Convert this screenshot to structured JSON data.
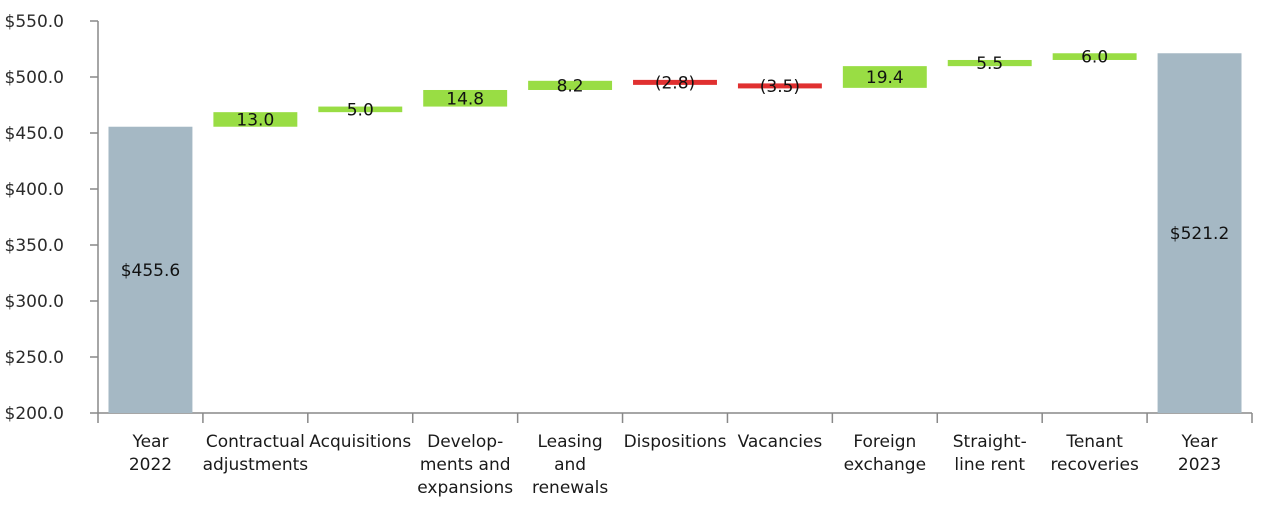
{
  "chart_data": {
    "type": "bar",
    "subtype": "waterfall",
    "title": "",
    "xlabel": "",
    "ylabel": "",
    "ylim": [
      200,
      550
    ],
    "y_ticks": [
      200,
      250,
      300,
      350,
      400,
      450,
      500,
      550
    ],
    "y_tick_labels": [
      "$200.0",
      "$250.0",
      "$300.0",
      "$350.0",
      "$400.0",
      "$450.0",
      "$500.0",
      "$550.0"
    ],
    "grid": false,
    "legend": "none",
    "colors": {
      "total": "#a5b8c4",
      "increase": "#99dd44",
      "decrease": "#e03030",
      "axis": "#888888"
    },
    "categories": [
      [
        "Year",
        "2022"
      ],
      [
        "Contractual",
        "adjustments"
      ],
      [
        "Acquisitions"
      ],
      [
        "Develop-",
        "ments and",
        "expansions"
      ],
      [
        "Leasing",
        "and",
        "renewals"
      ],
      [
        "Dispositions"
      ],
      [
        "Vacancies"
      ],
      [
        "Foreign",
        "exchange"
      ],
      [
        "Straight-",
        "line rent"
      ],
      [
        "Tenant",
        "recoveries"
      ],
      [
        "Year",
        "2023"
      ]
    ],
    "steps": [
      {
        "kind": "total",
        "value": 455.6,
        "label": "$455.6"
      },
      {
        "kind": "delta",
        "value": 13.0,
        "label": "13.0"
      },
      {
        "kind": "delta",
        "value": 5.0,
        "label": "5.0"
      },
      {
        "kind": "delta",
        "value": 14.8,
        "label": "14.8"
      },
      {
        "kind": "delta",
        "value": 8.2,
        "label": "8.2"
      },
      {
        "kind": "delta",
        "value": -2.8,
        "label": "(2.8)"
      },
      {
        "kind": "delta",
        "value": -3.5,
        "label": "(3.5)"
      },
      {
        "kind": "delta",
        "value": 19.4,
        "label": "19.4"
      },
      {
        "kind": "delta",
        "value": 5.5,
        "label": "5.5"
      },
      {
        "kind": "delta",
        "value": 6.0,
        "label": "6.0"
      },
      {
        "kind": "total",
        "value": 521.2,
        "label": "$521.2"
      }
    ]
  }
}
